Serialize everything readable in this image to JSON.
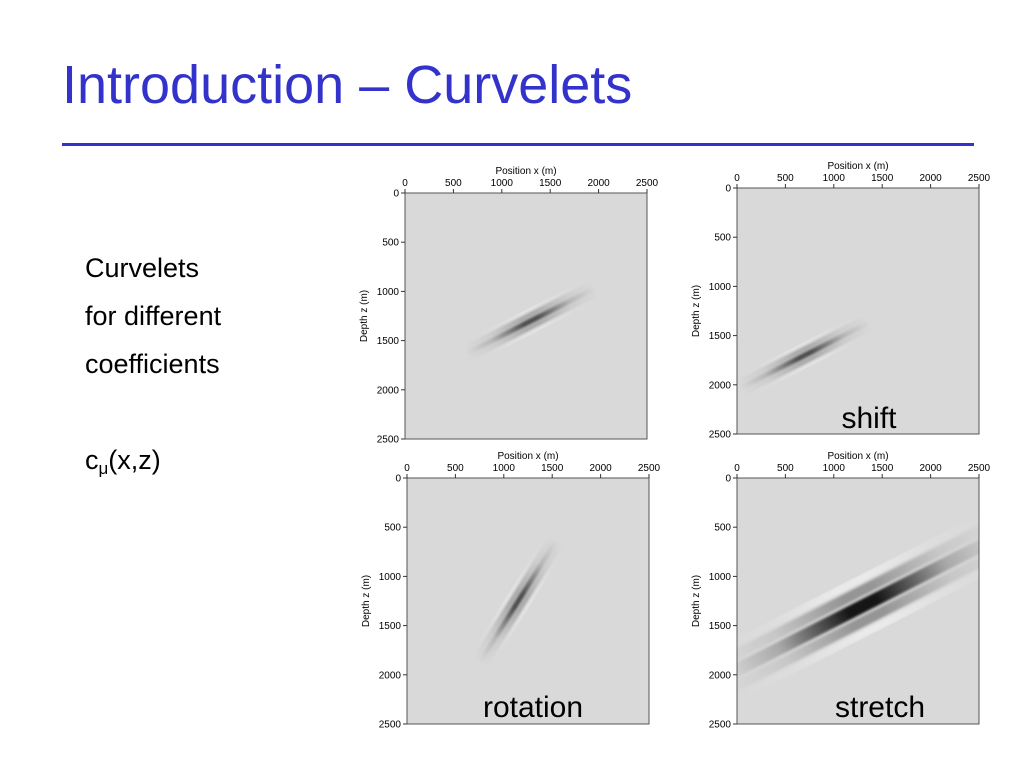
{
  "slide": {
    "title": "Introduction – Curvelets",
    "body_lines": [
      "Curvelets",
      "for different",
      "coefficients"
    ],
    "formula": {
      "base": "c",
      "subscript": "μ",
      "args": "(x,z)"
    }
  },
  "colors": {
    "title": "#3333cc",
    "rule": "#3333cc",
    "panel_background": "#d9d9d9",
    "wavelet_dark": "#000000",
    "wavelet_light": "#ffffff"
  },
  "axes": {
    "xlabel": "Position x (m)",
    "ylabel": "Depth z (m)",
    "x_ticks": [
      0,
      500,
      1000,
      1500,
      2000,
      2500
    ],
    "y_ticks": [
      0,
      500,
      1000,
      1500,
      2000,
      2500
    ],
    "xlim": [
      0,
      2500
    ],
    "ylim": [
      0,
      2500
    ],
    "x_axis_position": "top",
    "y_increases": "downward",
    "grid": false
  },
  "chart_data": [
    {
      "type": "heatmap",
      "caption": "",
      "curvelet": {
        "center_x": 1300,
        "center_z": 1300,
        "angle_deg": 27,
        "length_m": 1500,
        "width_m": 220,
        "intensity": 0.65
      }
    },
    {
      "type": "heatmap",
      "caption": "shift",
      "curvelet": {
        "center_x": 700,
        "center_z": 1700,
        "angle_deg": 27,
        "length_m": 1500,
        "width_m": 220,
        "intensity": 0.65
      }
    },
    {
      "type": "heatmap",
      "caption": "rotation",
      "curvelet": {
        "center_x": 1150,
        "center_z": 1250,
        "angle_deg": 58,
        "length_m": 1500,
        "width_m": 220,
        "intensity": 0.65
      }
    },
    {
      "type": "heatmap",
      "caption": "stretch",
      "curvelet": {
        "center_x": 1300,
        "center_z": 1300,
        "angle_deg": 27,
        "length_m": 3200,
        "width_m": 520,
        "intensity": 0.9
      }
    }
  ]
}
